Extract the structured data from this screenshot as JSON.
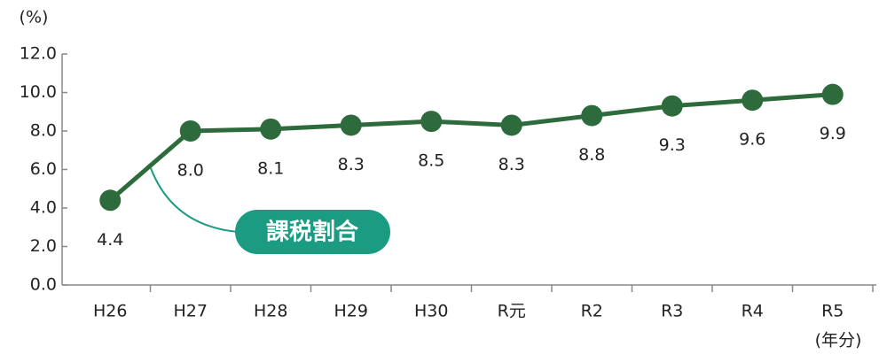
{
  "chart_data": {
    "type": "line",
    "y_unit_label": "(%)",
    "x_unit_label": "(年分)",
    "categories": [
      "H26",
      "H27",
      "H28",
      "H29",
      "H30",
      "R元",
      "R2",
      "R3",
      "R4",
      "R5"
    ],
    "series": [
      {
        "name": "課税割合",
        "color": "#2e6b3c",
        "values": [
          4.4,
          8.0,
          8.1,
          8.3,
          8.5,
          8.3,
          8.8,
          9.3,
          9.6,
          9.9
        ],
        "value_labels": [
          "4.4",
          "8.0",
          "8.1",
          "8.3",
          "8.5",
          "8.3",
          "8.8",
          "9.3",
          "9.6",
          "9.9"
        ]
      }
    ],
    "ylim": [
      0,
      12
    ],
    "yticks": [
      {
        "value": 0,
        "label": "0.0"
      },
      {
        "value": 2,
        "label": "2.0"
      },
      {
        "value": 4,
        "label": "4.0"
      },
      {
        "value": 6,
        "label": "6.0"
      },
      {
        "value": 8,
        "label": "8.0"
      },
      {
        "value": 10,
        "label": "10.0"
      },
      {
        "value": 12,
        "label": "12.0"
      }
    ],
    "annotation_color": "#1a9b82",
    "grid": false
  }
}
